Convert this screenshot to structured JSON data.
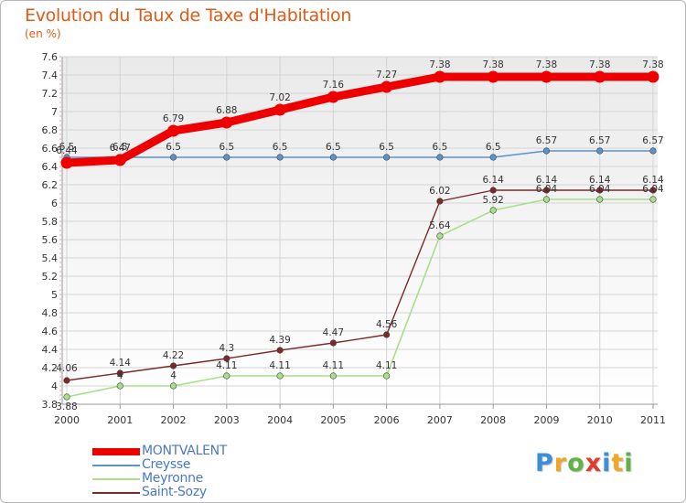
{
  "title": "Evolution du Taux de Taxe d'Habitation",
  "subtitle": "(en %)",
  "logo": {
    "letters": [
      {
        "ch": "P",
        "color": "#3b8fd6"
      },
      {
        "ch": "r",
        "color": "#f2a623"
      },
      {
        "ch": "o",
        "color": "#62b246"
      },
      {
        "ch": "x",
        "color": "#e23b2f"
      },
      {
        "ch": "i",
        "color": "#3b8fd6"
      },
      {
        "ch": "t",
        "color": "#f2a623"
      },
      {
        "ch": "i",
        "color": "#62b246"
      }
    ]
  },
  "chart_data": {
    "type": "line",
    "x": [
      "2000",
      "2001",
      "2002",
      "2003",
      "2004",
      "2005",
      "2006",
      "2007",
      "2008",
      "2009",
      "2010",
      "2011"
    ],
    "ylim": [
      3.8,
      7.6
    ],
    "yticks": [
      "3.8",
      "4",
      "4.2",
      "4.4",
      "4.6",
      "4.8",
      "5",
      "5.2",
      "5.4",
      "5.6",
      "5.8",
      "6",
      "6.2",
      "6.4",
      "6.6",
      "6.8",
      "7",
      "7.2",
      "7.4",
      "7.6"
    ],
    "grid": true,
    "legend_position": "bottom-left",
    "series": [
      {
        "name": "MONTVALENT",
        "color": "#ee0000",
        "width": 9,
        "values": [
          6.44,
          6.47,
          6.79,
          6.88,
          7.02,
          7.16,
          7.27,
          7.38,
          7.38,
          7.38,
          7.38,
          7.38
        ],
        "labels": [
          "6.44",
          "6.47",
          "6.79",
          "6.88",
          "7.02",
          "7.16",
          "7.27",
          "7.38",
          "7.38",
          "7.38",
          "7.38",
          "7.38"
        ]
      },
      {
        "name": "Creysse",
        "color": "#5b93cc",
        "width": 1.4,
        "values": [
          6.5,
          6.5,
          6.5,
          6.5,
          6.5,
          6.5,
          6.5,
          6.5,
          6.5,
          6.57,
          6.57,
          6.57
        ],
        "labels": [
          "6.5",
          "6.5",
          "6.5",
          "6.5",
          "6.5",
          "6.5",
          "6.5",
          "6.5",
          "6.5",
          "6.57",
          "6.57",
          "6.57"
        ]
      },
      {
        "name": "Meyronne",
        "color": "#a8df8a",
        "width": 1.6,
        "values": [
          3.88,
          4.0,
          4.0,
          4.11,
          4.11,
          4.11,
          4.11,
          5.64,
          5.92,
          6.04,
          6.04,
          6.04
        ],
        "labels": [
          "3.88",
          "4",
          "4",
          "4.11",
          "4.11",
          "4.11",
          "4.11",
          "5.64",
          "5.92",
          "6.04",
          "6.04",
          "6.04"
        ]
      },
      {
        "name": "Saint-Sozy",
        "color": "#7a2a2a",
        "width": 1.4,
        "values": [
          4.06,
          4.14,
          4.22,
          4.3,
          4.39,
          4.47,
          4.56,
          6.02,
          6.14,
          6.14,
          6.14,
          6.14
        ],
        "labels": [
          "4.06",
          "4.14",
          "4.22",
          "4.3",
          "4.39",
          "4.47",
          "4.56",
          "6.02",
          "6.14",
          "6.14",
          "6.14",
          "6.14"
        ]
      }
    ]
  }
}
